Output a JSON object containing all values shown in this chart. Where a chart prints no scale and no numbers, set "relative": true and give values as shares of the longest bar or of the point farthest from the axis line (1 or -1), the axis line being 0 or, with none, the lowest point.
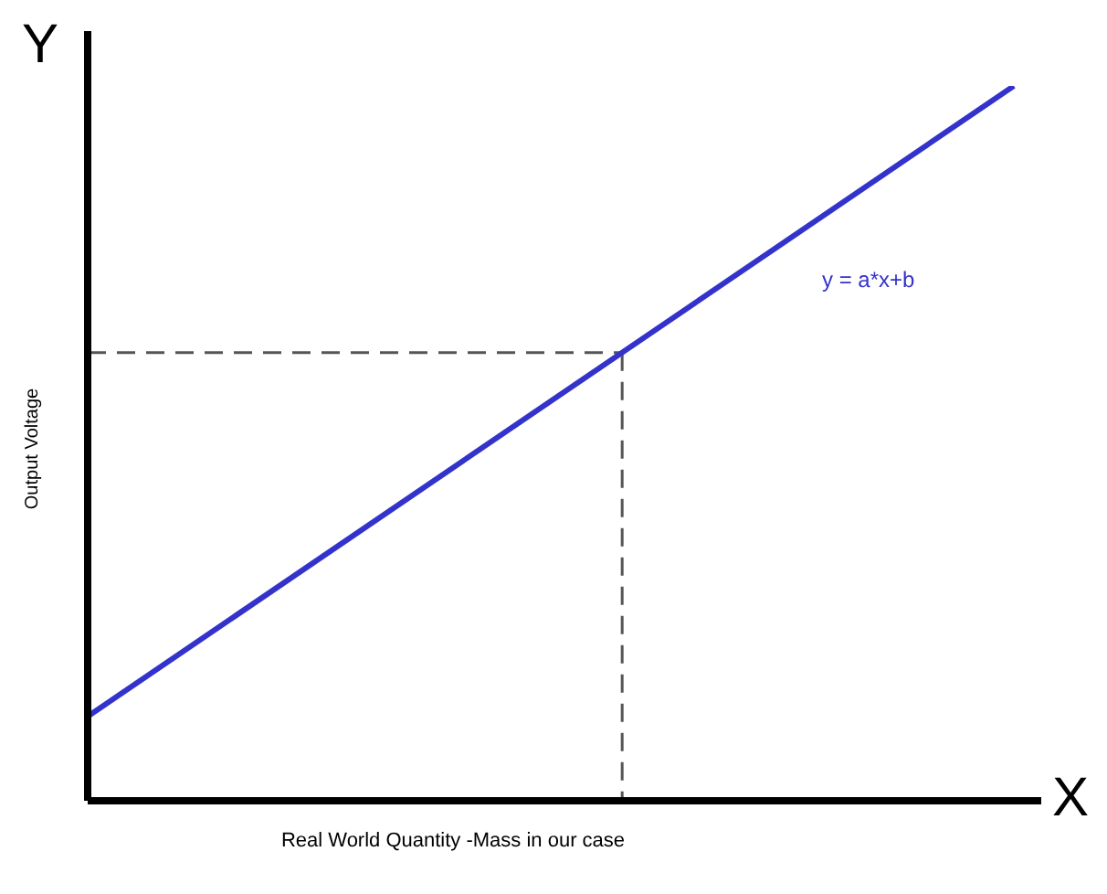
{
  "chart_data": {
    "type": "line",
    "relative": true,
    "xlabel": "Real World Quantity -Mass in our case",
    "ylabel": "Output Voltage",
    "annotations": [
      "Y",
      "X"
    ],
    "categories": [
      null,
      null,
      null,
      null,
      null,
      null,
      null,
      null,
      null,
      null,
      null
    ],
    "series": [
      {
        "name": "y = a*x+b",
        "color": "#3333cc",
        "values": [
          0.118,
          null,
          null,
          null,
          null,
          null,
          null,
          null,
          null,
          null,
          1
        ]
      }
    ],
    "ref_lines": [
      {
        "axis": "y",
        "value": 0.627,
        "color": "#555555",
        "line_style": "dashed"
      }
    ],
    "marker": "none",
    "line_style": "solid"
  }
}
